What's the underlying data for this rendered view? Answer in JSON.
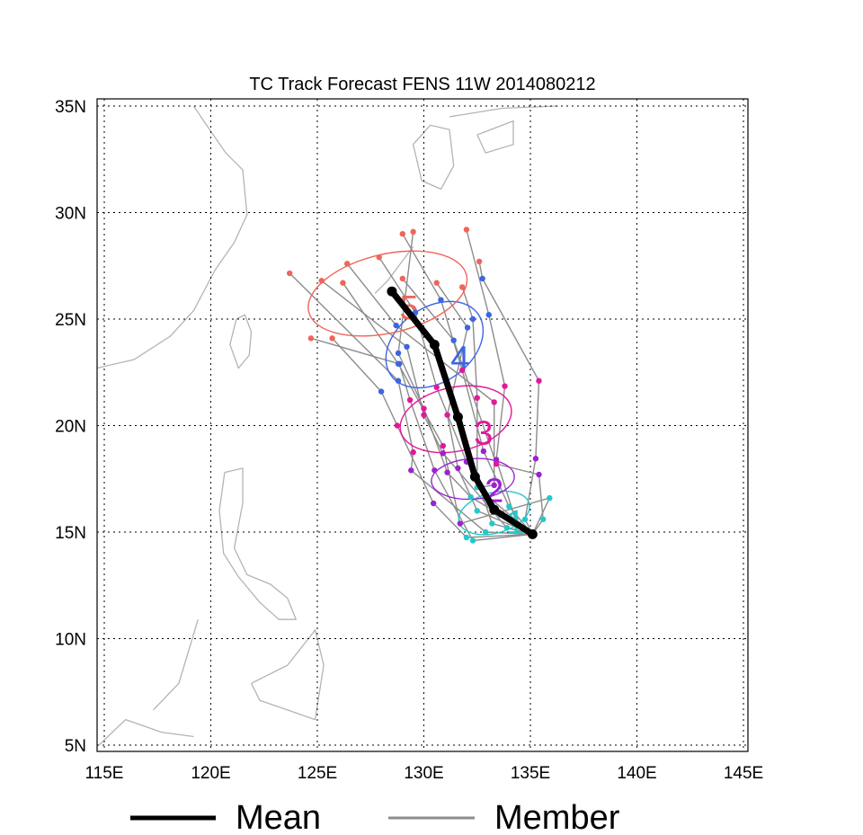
{
  "chart_data": {
    "type": "map-track",
    "title": "TC Track Forecast FENS  11W  2014080212",
    "lon_range": [
      115,
      145
    ],
    "lat_range": [
      5,
      35
    ],
    "lon_ticks": [
      {
        "v": 115,
        "label": "115E"
      },
      {
        "v": 120,
        "label": "120E"
      },
      {
        "v": 125,
        "label": "125E"
      },
      {
        "v": 130,
        "label": "130E"
      },
      {
        "v": 135,
        "label": "135E"
      },
      {
        "v": 140,
        "label": "140E"
      },
      {
        "v": 145,
        "label": "145E"
      }
    ],
    "lat_ticks": [
      {
        "v": 5,
        "label": "5N"
      },
      {
        "v": 10,
        "label": "10N"
      },
      {
        "v": 15,
        "label": "15N"
      },
      {
        "v": 20,
        "label": "20N"
      },
      {
        "v": 25,
        "label": "25N"
      },
      {
        "v": 30,
        "label": "30N"
      },
      {
        "v": 35,
        "label": "35N"
      }
    ],
    "grid": true,
    "colors": {
      "mean": "#000000",
      "member": "#8c8c8c",
      "coast": "#b4b4b4",
      "day1": "#22c8cc",
      "day2": "#9a22d0",
      "day3": "#e2189a",
      "day4": "#3c64e4",
      "day5": "#f0645a"
    },
    "start": [
      135.1,
      14.9
    ],
    "mean_track": [
      [
        135.1,
        14.9
      ],
      [
        133.3,
        16.05
      ],
      [
        132.4,
        17.6
      ],
      [
        131.6,
        20.4
      ],
      [
        130.5,
        23.8
      ],
      [
        128.5,
        26.3
      ]
    ],
    "members": [
      [
        [
          134.3,
          15.6
        ],
        [
          133.4,
          18.4
        ],
        [
          133.8,
          21.85
        ],
        [
          133.05,
          25.2
        ],
        [
          132.0,
          29.2
        ]
      ],
      [
        [
          134.75,
          15.6
        ],
        [
          135.25,
          18.45
        ],
        [
          135.4,
          22.1
        ],
        [
          132.75,
          26.9
        ],
        [
          132.6,
          27.7
        ]
      ],
      [
        [
          133.2,
          15.4
        ],
        [
          132.5,
          17.5
        ],
        [
          132.5,
          21.3
        ],
        [
          132.3,
          25.0
        ],
        [
          131.8,
          26.5
        ]
      ],
      [
        [
          132.5,
          16.0
        ],
        [
          131.6,
          18.0
        ],
        [
          131.1,
          20.5
        ],
        [
          132.05,
          24.6
        ],
        [
          130.6,
          26.7
        ]
      ],
      [
        [
          132.2,
          16.65
        ],
        [
          131.1,
          17.8
        ],
        [
          130.0,
          20.8
        ],
        [
          128.8,
          23.4
        ],
        [
          129.5,
          29.1
        ]
      ],
      [
        [
          132.0,
          14.75
        ],
        [
          130.45,
          16.35
        ],
        [
          128.75,
          20.0
        ],
        [
          128.0,
          21.6
        ],
        [
          125.7,
          24.1
        ]
      ],
      [
        [
          132.3,
          14.6
        ],
        [
          130.5,
          17.9
        ],
        [
          129.35,
          21.2
        ],
        [
          128.85,
          22.9
        ],
        [
          124.7,
          24.1
        ]
      ],
      [
        [
          132.9,
          15.0
        ],
        [
          129.4,
          17.9
        ],
        [
          129.5,
          18.75
        ],
        [
          128.8,
          22.1
        ],
        [
          123.7,
          27.15
        ]
      ],
      [
        [
          133.9,
          15.2
        ],
        [
          130.9,
          18.7
        ],
        [
          130.0,
          20.5
        ],
        [
          129.2,
          23.7
        ],
        [
          125.2,
          26.8
        ]
      ],
      [
        [
          132.5,
          17.1
        ],
        [
          133.3,
          17.2
        ],
        [
          133.3,
          21.1
        ],
        [
          128.7,
          24.7
        ],
        [
          126.4,
          27.6
        ]
      ],
      [
        [
          135.6,
          15.6
        ],
        [
          135.4,
          17.7
        ],
        [
          133.4,
          18.2
        ],
        [
          131.4,
          24.0
        ],
        [
          129.0,
          26.9
        ]
      ],
      [
        [
          135.9,
          16.6
        ],
        [
          131.7,
          15.4
        ],
        [
          130.9,
          19.05
        ],
        [
          128.8,
          22.9
        ],
        [
          126.2,
          26.7
        ]
      ],
      [
        [
          133.6,
          15.8
        ],
        [
          132.0,
          18.3
        ],
        [
          130.6,
          21.8
        ],
        [
          129.6,
          25.3
        ],
        [
          127.9,
          27.9
        ]
      ],
      [
        [
          134.0,
          16.2
        ],
        [
          132.8,
          18.8
        ],
        [
          131.8,
          22.6
        ],
        [
          130.8,
          25.9
        ],
        [
          129.0,
          29.0
        ]
      ]
    ],
    "ellipses": [
      {
        "day": 1,
        "label": "1",
        "center": [
          133.3,
          15.9
        ],
        "rx": 1.7,
        "ry": 0.95,
        "rot": -15,
        "label_at": [
          134.3,
          15.5
        ]
      },
      {
        "day": 2,
        "label": "2",
        "center": [
          132.3,
          17.5
        ],
        "rx": 1.95,
        "ry": 0.95,
        "rot": -4,
        "label_at": [
          133.3,
          17.0
        ]
      },
      {
        "day": 3,
        "label": "3",
        "center": [
          131.5,
          20.3
        ],
        "rx": 2.65,
        "ry": 1.5,
        "rot": -12,
        "label_at": [
          132.8,
          19.7
        ]
      },
      {
        "day": 4,
        "label": "4",
        "center": [
          130.5,
          23.8
        ],
        "rx": 2.5,
        "ry": 1.75,
        "rot": -35,
        "label_at": [
          131.7,
          23.2
        ]
      },
      {
        "day": 5,
        "label": "5",
        "center": [
          128.3,
          26.2
        ],
        "rx": 3.8,
        "ry": 1.85,
        "rot": -13,
        "label_at": [
          129.3,
          25.6
        ]
      }
    ],
    "coastlines": [
      [
        [
          114.66,
          22.7
        ],
        [
          116.4,
          23.1
        ],
        [
          118.1,
          24.2
        ],
        [
          119.2,
          25.4
        ],
        [
          120.2,
          27.3
        ],
        [
          121.1,
          28.6
        ],
        [
          121.7,
          29.9
        ],
        [
          121.5,
          32.0
        ],
        [
          120.7,
          32.8
        ],
        [
          119.8,
          34.1
        ],
        [
          119.2,
          35.0
        ]
      ],
      [
        [
          121.2,
          25.0
        ],
        [
          121.6,
          25.2
        ],
        [
          121.9,
          24.4
        ],
        [
          121.8,
          23.3
        ],
        [
          121.3,
          22.7
        ],
        [
          120.9,
          23.8
        ],
        [
          121.2,
          25.0
        ]
      ],
      [
        [
          120.65,
          17.8
        ],
        [
          121.5,
          18.0
        ],
        [
          121.5,
          16.35
        ],
        [
          121.1,
          14.25
        ],
        [
          121.7,
          13.0
        ],
        [
          122.8,
          12.55
        ],
        [
          123.6,
          11.9
        ],
        [
          124.0,
          10.9
        ],
        [
          123.2,
          10.9
        ],
        [
          122.3,
          11.7
        ],
        [
          121.3,
          12.9
        ],
        [
          120.6,
          14.0
        ],
        [
          120.4,
          16.0
        ],
        [
          120.65,
          17.8
        ]
      ],
      [
        [
          121.9,
          7.9
        ],
        [
          123.6,
          8.75
        ],
        [
          124.9,
          10.4
        ],
        [
          125.3,
          8.75
        ],
        [
          124.9,
          6.2
        ],
        [
          123.6,
          6.65
        ],
        [
          122.3,
          7.1
        ],
        [
          121.9,
          7.9
        ]
      ],
      [
        [
          117.3,
          6.65
        ],
        [
          118.5,
          7.9
        ],
        [
          119.4,
          10.9
        ]
      ],
      [
        [
          114.75,
          5.0
        ],
        [
          116.0,
          6.2
        ],
        [
          117.7,
          5.6
        ],
        [
          119.2,
          5.4
        ]
      ],
      [
        [
          129.5,
          33.2
        ],
        [
          130.3,
          34.1
        ],
        [
          131.2,
          33.9
        ],
        [
          131.4,
          32.2
        ],
        [
          130.8,
          31.1
        ],
        [
          129.9,
          31.5
        ],
        [
          129.5,
          33.2
        ]
      ],
      [
        [
          132.5,
          33.65
        ],
        [
          134.2,
          34.3
        ],
        [
          134.2,
          33.2
        ],
        [
          132.9,
          32.8
        ],
        [
          132.5,
          33.65
        ]
      ],
      [
        [
          131.2,
          34.5
        ],
        [
          133.7,
          34.9
        ],
        [
          136.3,
          35.0
        ]
      ],
      [
        [
          129.5,
          28.4
        ],
        [
          128.3,
          26.8
        ],
        [
          127.7,
          26.2
        ]
      ]
    ],
    "legend": [
      {
        "label": "Mean",
        "key": "mean"
      },
      {
        "label": "Member",
        "key": "member"
      }
    ],
    "legend_position": "bottom"
  }
}
